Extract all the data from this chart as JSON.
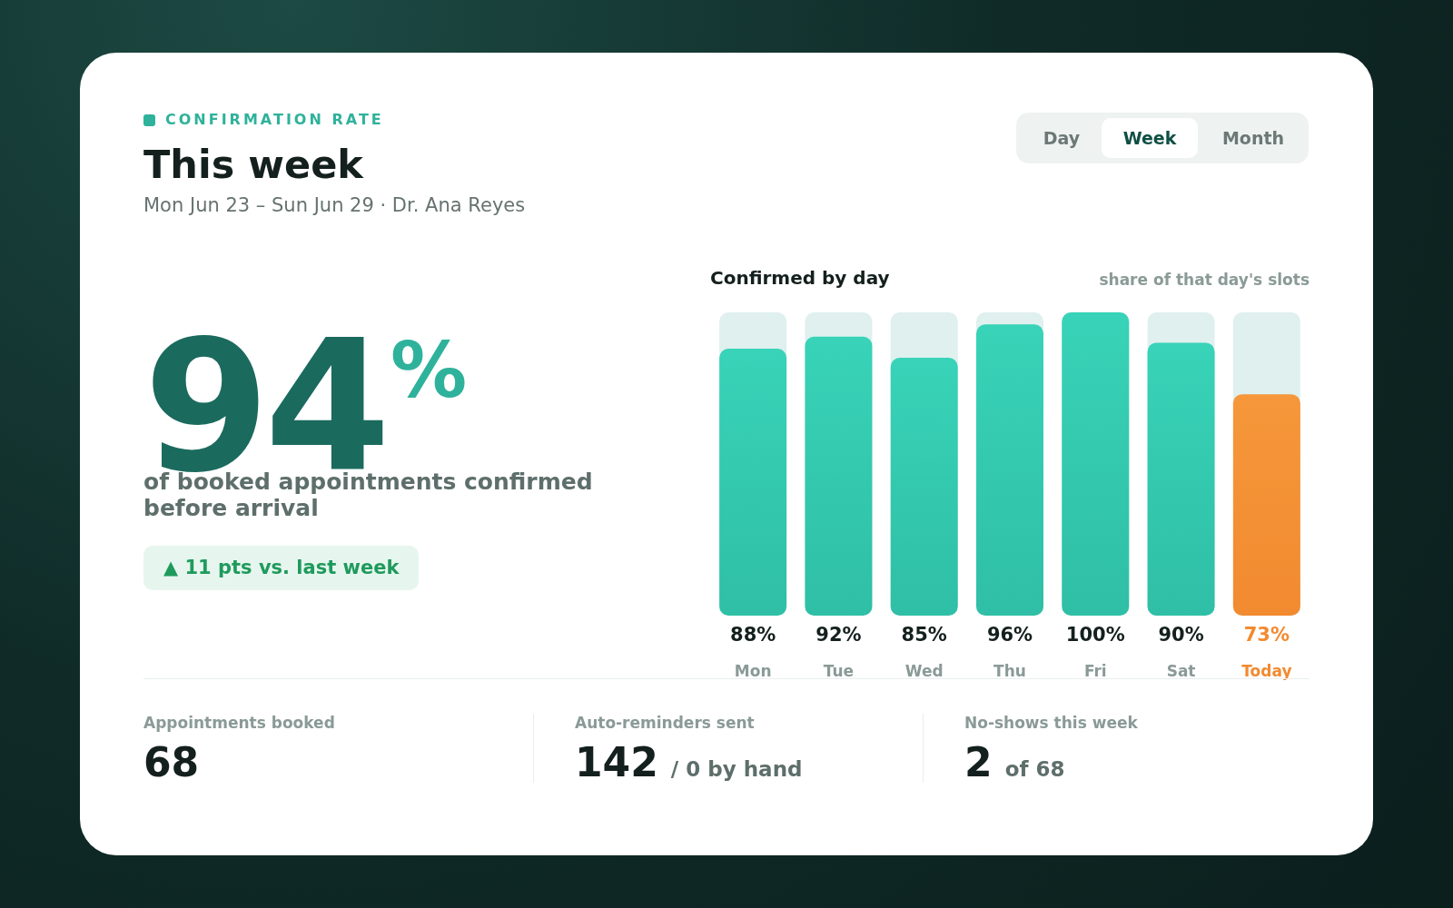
{
  "chart_data": {
    "type": "bar",
    "title": "This week",
    "subtitle": "Mon Jun 23 – Sun Jun 29 · Dr. Ana Reyes",
    "categories": [
      "Mon",
      "Tue",
      "Wed",
      "Thu",
      "Fri",
      "Sat",
      "Today"
    ],
    "values": [
      88,
      92,
      85,
      96,
      100,
      90,
      73
    ],
    "colors": [
      "#2fbfa6",
      "#2fbfa6",
      "#2fbfa6",
      "#2fbfa6",
      "#2fbfa6",
      "#2fbfa6",
      "#f28a30"
    ],
    "value_labels": [
      "88%",
      "92%",
      "85%",
      "96%",
      "100%",
      "90%",
      "73%"
    ],
    "ylim": [
      0,
      100
    ],
    "tick_labels": false,
    "annotations": [
      "CONFIRMATION RATE",
      "Day",
      "Week",
      "Month",
      "94",
      "%",
      "of booked appointments confirmed before arrival",
      "▲ 11 pts vs. last week",
      "Confirmed by day",
      "share of that day's slots",
      "Appointments booked",
      "68",
      "Auto-reminders sent",
      "142",
      "/ 0 by hand",
      "No-shows this week",
      "2",
      "of 68"
    ]
  }
}
